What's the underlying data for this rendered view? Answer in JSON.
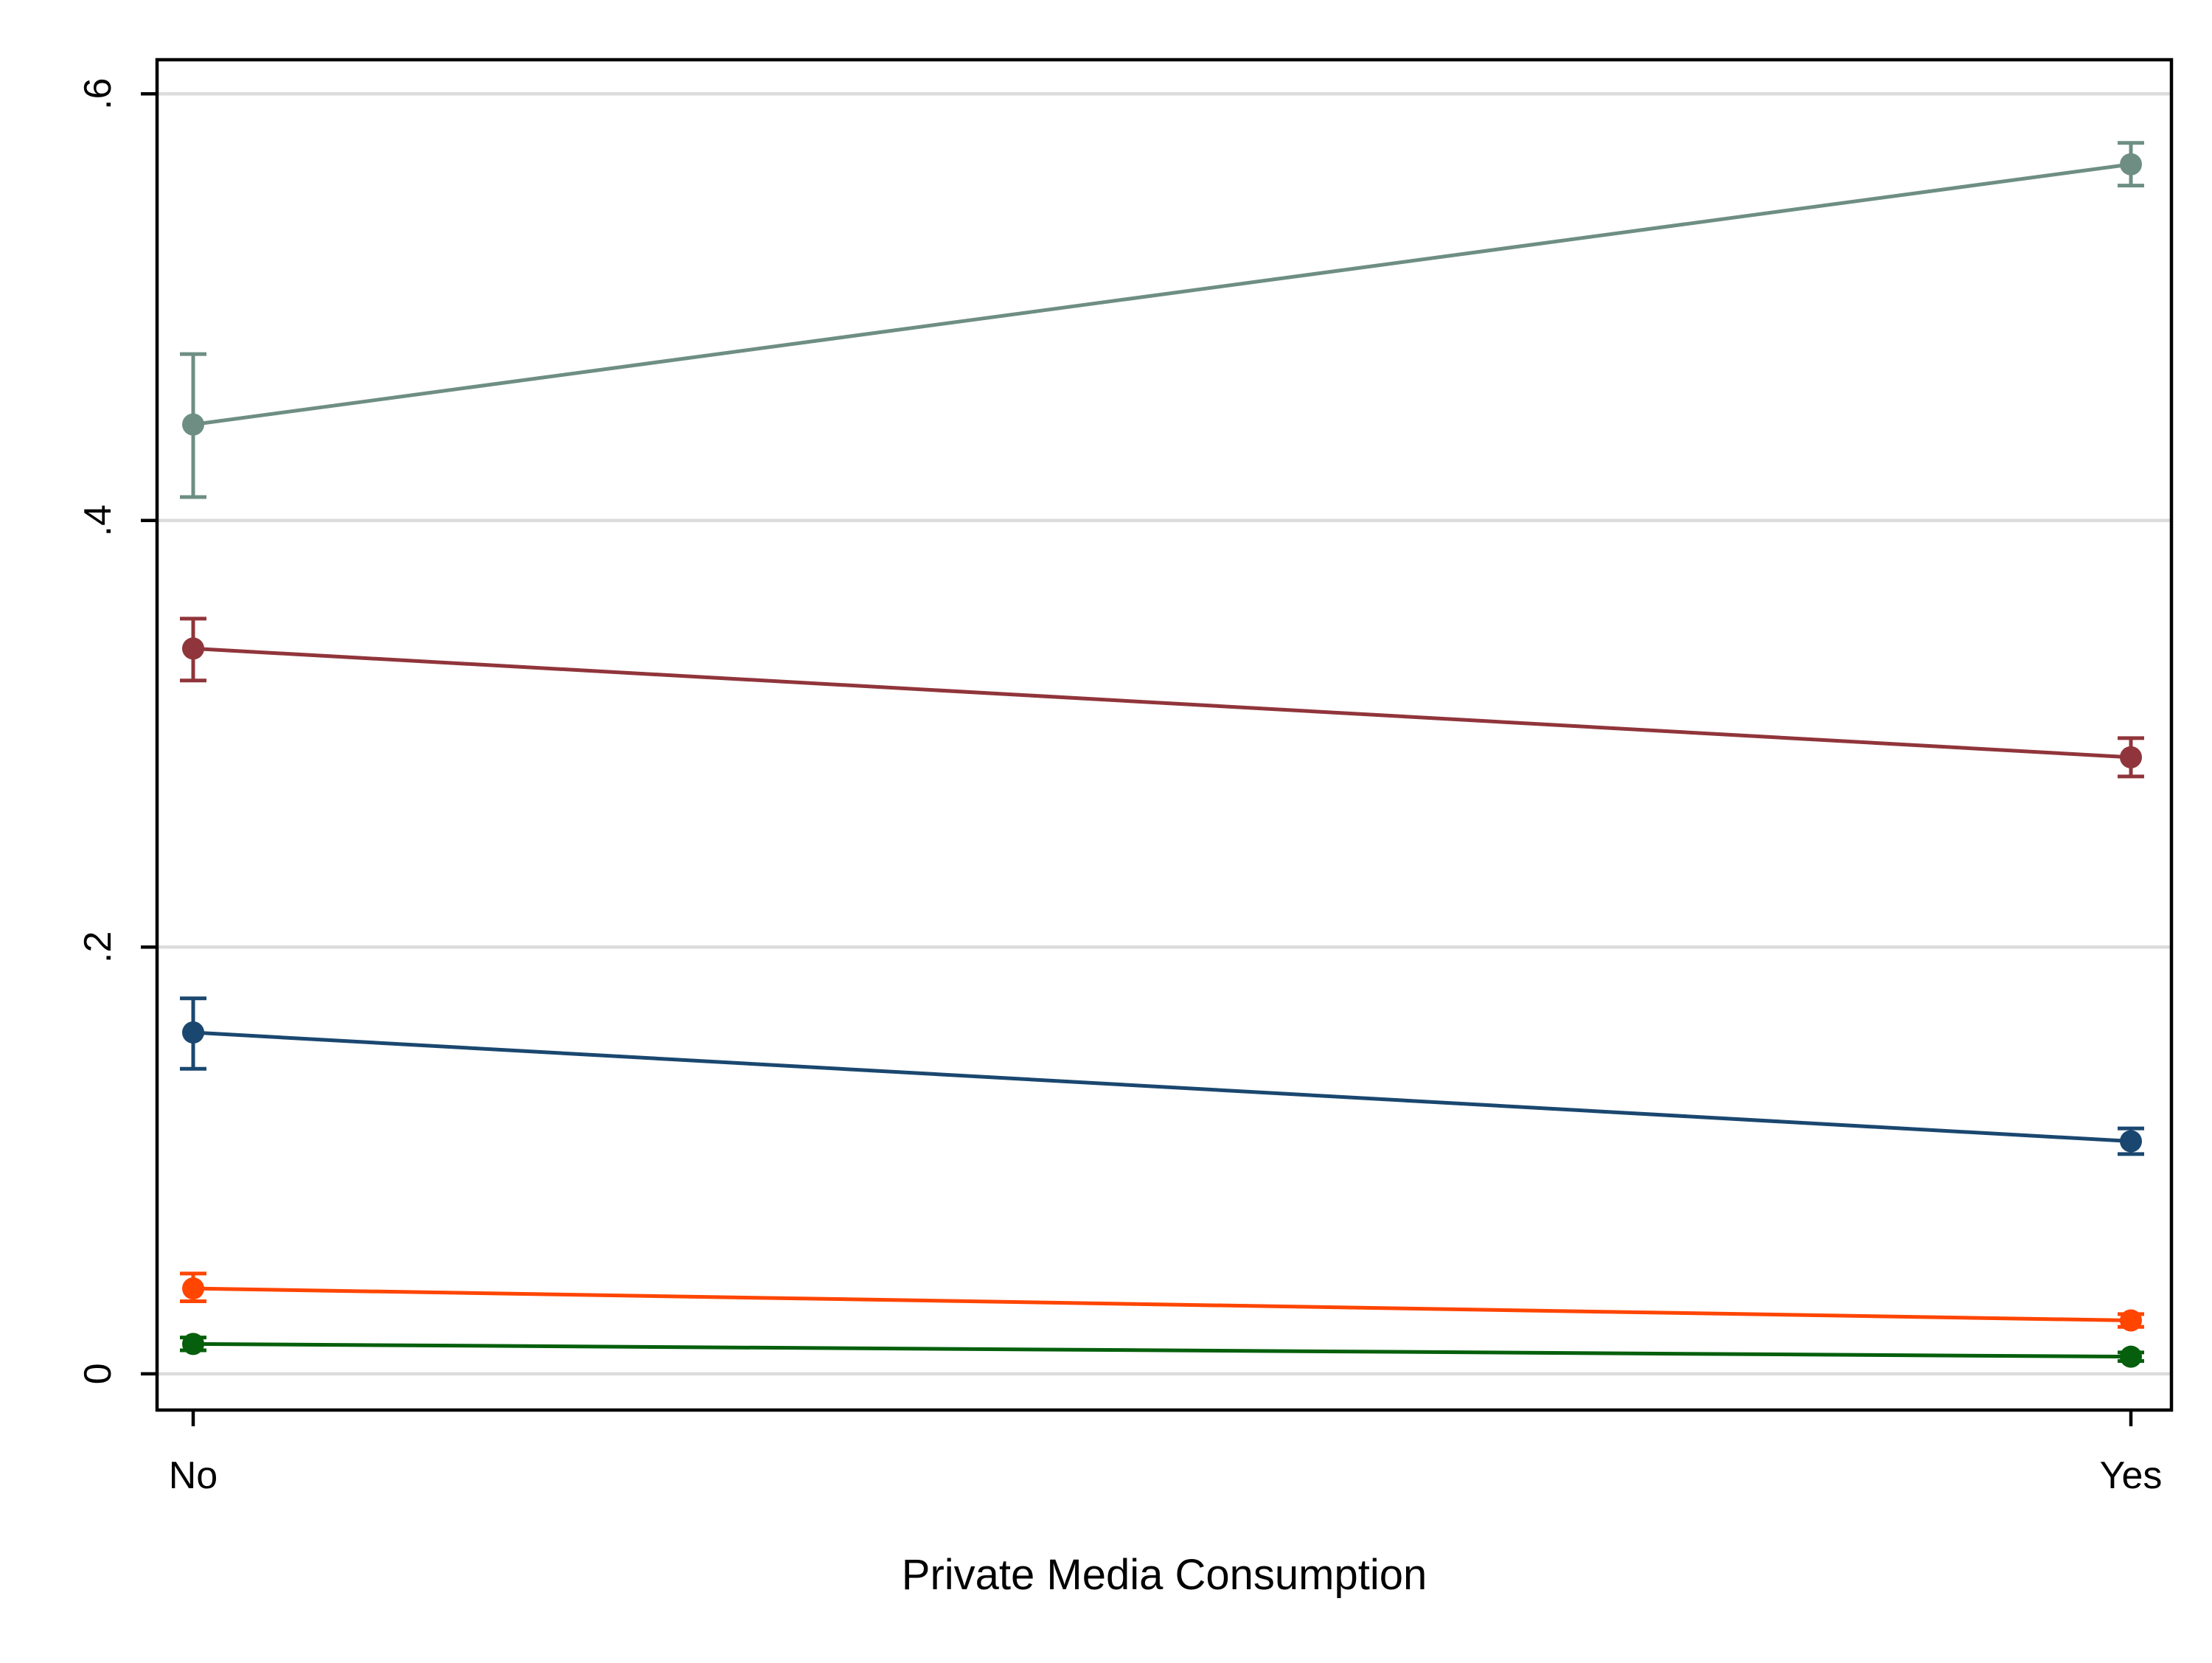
{
  "chart_data": {
    "type": "line",
    "title": "",
    "xlabel": "Private Media Consumption",
    "ylabel": "",
    "categories": [
      "No",
      "Yes"
    ],
    "ylim": [
      -0.017,
      0.616
    ],
    "yticks": [
      0,
      0.2,
      0.4,
      0.6
    ],
    "ytick_labels": [
      "0",
      ".2",
      ".4",
      ".6"
    ],
    "grid": true,
    "legend": "none",
    "series": [
      {
        "color": "#6e8e84",
        "values": [
          0.445,
          0.567
        ],
        "ci_low": [
          0.411,
          0.557
        ],
        "ci_high": [
          0.478,
          0.577
        ]
      },
      {
        "color": "#90353b",
        "values": [
          0.34,
          0.289
        ],
        "ci_low": [
          0.325,
          0.28
        ],
        "ci_high": [
          0.354,
          0.298
        ]
      },
      {
        "color": "#1a476f",
        "values": [
          0.16,
          0.109
        ],
        "ci_low": [
          0.143,
          0.103
        ],
        "ci_high": [
          0.176,
          0.115
        ]
      },
      {
        "color": "#ff4500",
        "values": [
          0.04,
          0.025
        ],
        "ci_low": [
          0.034,
          0.022
        ],
        "ci_high": [
          0.047,
          0.028
        ]
      },
      {
        "color": "#055f0c",
        "values": [
          0.014,
          0.008
        ],
        "ci_low": [
          0.011,
          0.006
        ],
        "ci_high": [
          0.017,
          0.01
        ]
      }
    ]
  }
}
